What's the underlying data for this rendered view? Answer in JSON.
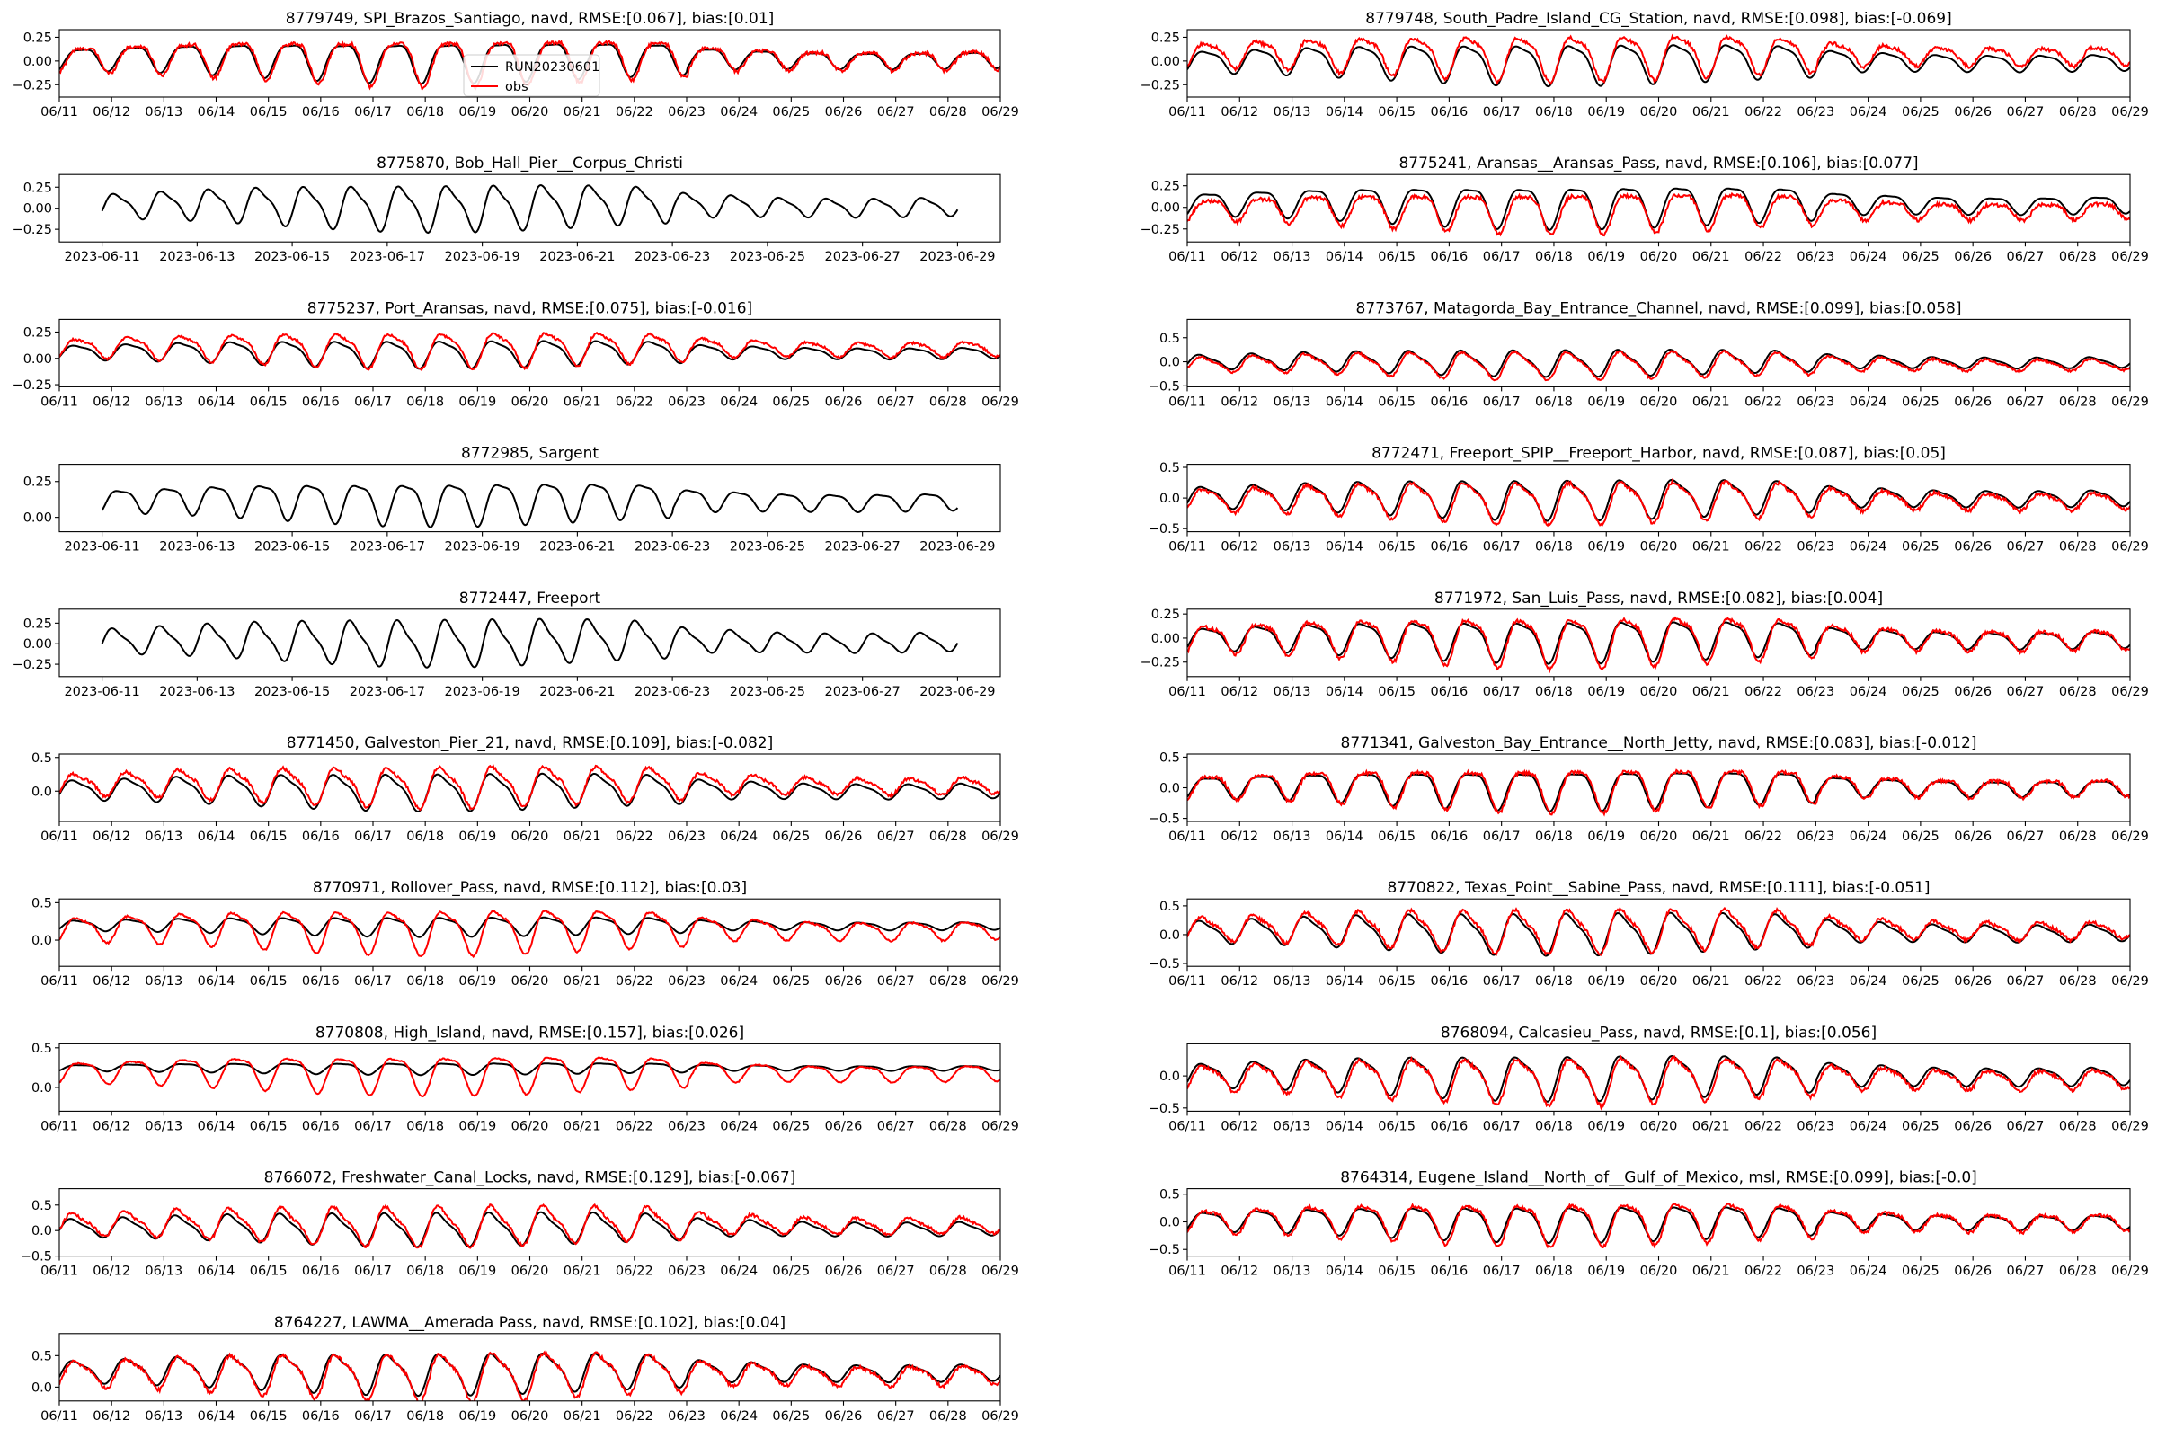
{
  "figure": {
    "legend": {
      "placement": "upper-center",
      "entries": [
        {
          "name": "RUN20230601",
          "color": "#000000"
        },
        {
          "name": "obs",
          "color": "#ff0000"
        }
      ]
    }
  },
  "colors": {
    "model": "#000000",
    "obs": "#ff0000"
  },
  "chart_data": [
    {
      "type": "line",
      "title": "8779749, SPI_Brazos_Santiago, navd, RMSE:[0.067], bias:[0.01]",
      "xaxis": "short",
      "xlim": [
        0,
        18
      ],
      "ylim": [
        -0.38,
        0.33
      ],
      "yticks": [
        -0.25,
        0,
        0.25
      ],
      "ytick_labels": [
        "−0.25",
        "0.00",
        "0.25"
      ],
      "amplitude": 0.2,
      "offset": 0.03,
      "obs": true,
      "obs_amp_scale": 1.15,
      "obs_offset": 0.0,
      "legend": true,
      "series": [
        {
          "name": "RUN20230601"
        },
        {
          "name": "obs"
        }
      ]
    },
    {
      "type": "line",
      "title": "8779748, South_Padre_Island_CG_Station, navd, RMSE:[0.098], bias:[-0.069]",
      "xaxis": "short",
      "xlim": [
        0,
        18
      ],
      "ylim": [
        -0.38,
        0.33
      ],
      "yticks": [
        -0.25,
        0,
        0.25
      ],
      "ytick_labels": [
        "−0.25",
        "0.00",
        "0.25"
      ],
      "amplitude": 0.2,
      "offset": 0.0,
      "obs": true,
      "obs_amp_scale": 1.1,
      "obs_offset": 0.07,
      "legend": false,
      "series": [
        {
          "name": "RUN20230601"
        },
        {
          "name": "obs"
        }
      ]
    },
    {
      "type": "line",
      "title": "8775870, Bob_Hall_Pier__Corpus_Christi",
      "xaxis": "long",
      "xlim": [
        -0.9,
        18.9
      ],
      "ylim": [
        -0.4,
        0.4
      ],
      "yticks": [
        -0.25,
        0,
        0.25
      ],
      "ytick_labels": [
        "−0.25",
        "0.00",
        "0.25"
      ],
      "amplitude": 0.25,
      "offset": 0.03,
      "obs": false,
      "legend": false,
      "series": [
        {
          "name": "RUN20230601"
        }
      ]
    },
    {
      "type": "line",
      "title": "8775241, Aransas__Aransas_Pass, navd, RMSE:[0.106], bias:[0.077]",
      "xaxis": "short",
      "xlim": [
        0,
        18
      ],
      "ylim": [
        -0.4,
        0.38
      ],
      "yticks": [
        -0.25,
        0,
        0.25
      ],
      "ytick_labels": [
        "−0.25",
        "0.00",
        "0.25"
      ],
      "amplitude": 0.23,
      "offset": 0.05,
      "obs": true,
      "obs_amp_scale": 0.95,
      "obs_offset": -0.07,
      "legend": false,
      "series": [
        {
          "name": "RUN20230601"
        },
        {
          "name": "obs"
        }
      ]
    },
    {
      "type": "line",
      "title": "8775237, Port_Aransas, navd, RMSE:[0.075], bias:[-0.016]",
      "xaxis": "short",
      "xlim": [
        0,
        18
      ],
      "ylim": [
        -0.27,
        0.37
      ],
      "yticks": [
        -0.25,
        0,
        0.25
      ],
      "ytick_labels": [
        "−0.25",
        "0.00",
        "0.25"
      ],
      "amplitude": 0.12,
      "offset": 0.06,
      "obs": true,
      "obs_amp_scale": 1.3,
      "obs_offset": 0.04,
      "legend": false,
      "series": [
        {
          "name": "RUN20230601"
        },
        {
          "name": "obs"
        }
      ]
    },
    {
      "type": "line",
      "title": "8773767, Matagorda_Bay_Entrance_Channel, navd, RMSE:[0.099], bias:[0.058]",
      "xaxis": "short",
      "xlim": [
        0,
        18
      ],
      "ylim": [
        -0.52,
        0.88
      ],
      "yticks": [
        -0.5,
        0,
        0.5
      ],
      "ytick_labels": [
        "−0.5",
        "0.0",
        "0.5"
      ],
      "amplitude": 0.25,
      "offset": 0.0,
      "obs": true,
      "obs_amp_scale": 1.05,
      "obs_offset": -0.05,
      "legend": false,
      "series": [
        {
          "name": "RUN20230601"
        },
        {
          "name": "obs"
        }
      ]
    },
    {
      "type": "line",
      "title": "8772985, Sargent",
      "xaxis": "long",
      "xlim": [
        -0.9,
        18.9
      ],
      "ylim": [
        -0.1,
        0.37
      ],
      "yticks": [
        0,
        0.25
      ],
      "ytick_labels": [
        "0.00",
        "0.25"
      ],
      "amplitude": 0.14,
      "offset": 0.12,
      "obs": false,
      "legend": false,
      "series": [
        {
          "name": "RUN20230601"
        }
      ]
    },
    {
      "type": "line",
      "title": "8772471, Freeport_SPIP__Freeport_Harbor, navd, RMSE:[0.087], bias:[0.05]",
      "xaxis": "short",
      "xlim": [
        0,
        18
      ],
      "ylim": [
        -0.55,
        0.55
      ],
      "yticks": [
        -0.5,
        0,
        0.5
      ],
      "ytick_labels": [
        "−0.5",
        "0.0",
        "0.5"
      ],
      "amplitude": 0.3,
      "offset": 0.02,
      "obs": true,
      "obs_amp_scale": 1.05,
      "obs_offset": -0.05,
      "legend": false,
      "series": [
        {
          "name": "RUN20230601"
        },
        {
          "name": "obs"
        }
      ]
    },
    {
      "type": "line",
      "title": "8772447, Freeport",
      "xaxis": "long",
      "xlim": [
        -0.9,
        18.9
      ],
      "ylim": [
        -0.4,
        0.42
      ],
      "yticks": [
        -0.25,
        0,
        0.25
      ],
      "ytick_labels": [
        "−0.25",
        "0.00",
        "0.25"
      ],
      "amplitude": 0.26,
      "offset": 0.03,
      "obs": false,
      "legend": false,
      "series": [
        {
          "name": "RUN20230601"
        }
      ]
    },
    {
      "type": "line",
      "title": "8771972, San_Luis_Pass, navd, RMSE:[0.082], bias:[0.004]",
      "xaxis": "short",
      "xlim": [
        0,
        18
      ],
      "ylim": [
        -0.4,
        0.3
      ],
      "yticks": [
        -0.25,
        0,
        0.25
      ],
      "ytick_labels": [
        "−0.25",
        "0.00",
        "0.25"
      ],
      "amplitude": 0.2,
      "offset": 0.0,
      "obs": true,
      "obs_amp_scale": 1.2,
      "obs_offset": 0.0,
      "legend": false,
      "series": [
        {
          "name": "RUN20230601"
        },
        {
          "name": "obs"
        }
      ]
    },
    {
      "type": "line",
      "title": "8771450, Galveston_Pier_21, navd, RMSE:[0.109], bias:[-0.082]",
      "xaxis": "short",
      "xlim": [
        0,
        18
      ],
      "ylim": [
        -0.45,
        0.55
      ],
      "yticks": [
        0,
        0.5
      ],
      "ytick_labels": [
        "0.0",
        "0.5"
      ],
      "amplitude": 0.25,
      "offset": 0.02,
      "obs": true,
      "obs_amp_scale": 1.1,
      "obs_offset": 0.08,
      "legend": false,
      "series": [
        {
          "name": "RUN20230601"
        },
        {
          "name": "obs"
        }
      ]
    },
    {
      "type": "line",
      "title": "8771341, Galveston_Bay_Entrance__North_Jetty, navd, RMSE:[0.083], bias:[-0.012]",
      "xaxis": "short",
      "xlim": [
        0,
        18
      ],
      "ylim": [
        -0.55,
        0.55
      ],
      "yticks": [
        -0.5,
        0,
        0.5
      ],
      "ytick_labels": [
        "−0.5",
        "0.0",
        "0.5"
      ],
      "amplitude": 0.3,
      "offset": 0.02,
      "obs": true,
      "obs_amp_scale": 1.1,
      "obs_offset": 0.01,
      "legend": false,
      "series": [
        {
          "name": "RUN20230601"
        },
        {
          "name": "obs"
        }
      ]
    },
    {
      "type": "line",
      "title": "8770971, Rollover_Pass, navd, RMSE:[0.112], bias:[0.03]",
      "xaxis": "short",
      "xlim": [
        0,
        18
      ],
      "ylim": [
        -0.35,
        0.55
      ],
      "yticks": [
        0,
        0.5
      ],
      "ytick_labels": [
        "0.0",
        "0.5"
      ],
      "amplitude": 0.12,
      "offset": 0.2,
      "obs": true,
      "obs_amp_scale": 2.3,
      "obs_offset": -0.05,
      "legend": false,
      "series": [
        {
          "name": "RUN20230601"
        },
        {
          "name": "obs"
        }
      ]
    },
    {
      "type": "line",
      "title": "8770822, Texas_Point__Sabine_Pass, navd, RMSE:[0.111], bias:[-0.051]",
      "xaxis": "short",
      "xlim": [
        0,
        18
      ],
      "ylim": [
        -0.55,
        0.62
      ],
      "yticks": [
        -0.5,
        0,
        0.5
      ],
      "ytick_labels": [
        "−0.5",
        "0.0",
        "0.5"
      ],
      "amplitude": 0.33,
      "offset": 0.05,
      "obs": true,
      "obs_amp_scale": 1.05,
      "obs_offset": 0.05,
      "legend": false,
      "series": [
        {
          "name": "RUN20230601"
        },
        {
          "name": "obs"
        }
      ]
    },
    {
      "type": "line",
      "title": "8770808, High_Island, navd, RMSE:[0.157], bias:[0.026]",
      "xaxis": "short",
      "xlim": [
        0,
        18
      ],
      "ylim": [
        -0.3,
        0.55
      ],
      "yticks": [
        0,
        0.5
      ],
      "ytick_labels": [
        "0.0",
        "0.5"
      ],
      "amplitude": 0.07,
      "offset": 0.25,
      "obs": true,
      "obs_amp_scale": 3.3,
      "obs_offset": -0.05,
      "legend": false,
      "series": [
        {
          "name": "RUN20230601"
        },
        {
          "name": "obs"
        }
      ]
    },
    {
      "type": "line",
      "title": "8768094, Calcasieu_Pass, navd, RMSE:[0.1], bias:[0.056]",
      "xaxis": "short",
      "xlim": [
        0,
        18
      ],
      "ylim": [
        -0.55,
        0.5
      ],
      "yticks": [
        -0.5,
        0
      ],
      "ytick_labels": [
        "−0.5",
        "0.0"
      ],
      "amplitude": 0.32,
      "offset": 0.02,
      "obs": true,
      "obs_amp_scale": 1.05,
      "obs_offset": -0.05,
      "legend": false,
      "series": [
        {
          "name": "RUN20230601"
        },
        {
          "name": "obs"
        }
      ]
    },
    {
      "type": "line",
      "title": "8766072, Freshwater_Canal_Locks, navd, RMSE:[0.129], bias:[-0.067]",
      "xaxis": "short",
      "xlim": [
        0,
        18
      ],
      "ylim": [
        -0.5,
        0.82
      ],
      "yticks": [
        -0.5,
        0,
        0.5
      ],
      "ytick_labels": [
        "−0.5",
        "0.0",
        "0.5"
      ],
      "amplitude": 0.3,
      "offset": 0.05,
      "obs": true,
      "obs_amp_scale": 1.2,
      "obs_offset": 0.07,
      "legend": false,
      "series": [
        {
          "name": "RUN20230601"
        },
        {
          "name": "obs"
        }
      ]
    },
    {
      "type": "line",
      "title": "8764314, Eugene_Island__North_of__Gulf_of_Mexico, msl, RMSE:[0.099], bias:[-0.0]",
      "xaxis": "short",
      "xlim": [
        0,
        18
      ],
      "ylim": [
        -0.62,
        0.6
      ],
      "yticks": [
        -0.5,
        0,
        0.5
      ],
      "ytick_labels": [
        "−0.5",
        "0.0",
        "0.5"
      ],
      "amplitude": 0.3,
      "offset": 0.02,
      "obs": true,
      "obs_amp_scale": 1.2,
      "obs_offset": 0.0,
      "legend": false,
      "series": [
        {
          "name": "RUN20230601"
        },
        {
          "name": "obs"
        }
      ]
    },
    {
      "type": "line",
      "title": "8764227, LAWMA__Amerada Pass, navd, RMSE:[0.102], bias:[0.04]",
      "xaxis": "short",
      "xlim": [
        0,
        18
      ],
      "ylim": [
        -0.22,
        0.85
      ],
      "yticks": [
        0,
        0.5
      ],
      "ytick_labels": [
        "0.0",
        "0.5"
      ],
      "amplitude": 0.3,
      "offset": 0.25,
      "obs": true,
      "obs_amp_scale": 1.15,
      "obs_offset": -0.04,
      "legend": false,
      "series": [
        {
          "name": "RUN20230601"
        },
        {
          "name": "obs"
        }
      ]
    }
  ],
  "xaxes": {
    "short": {
      "positions": [
        0,
        1,
        2,
        3,
        4,
        5,
        6,
        7,
        8,
        9,
        10,
        11,
        12,
        13,
        14,
        15,
        16,
        17,
        18
      ],
      "labels": [
        "06/11",
        "06/12",
        "06/13",
        "06/14",
        "06/15",
        "06/16",
        "06/17",
        "06/18",
        "06/19",
        "06/20",
        "06/21",
        "06/22",
        "06/23",
        "06/24",
        "06/25",
        "06/26",
        "06/27",
        "06/28",
        "06/29"
      ]
    },
    "long": {
      "positions": [
        0,
        2,
        4,
        6,
        8,
        10,
        12,
        14,
        16,
        18
      ],
      "labels": [
        "2023-06-11",
        "2023-06-13",
        "2023-06-15",
        "2023-06-17",
        "2023-06-19",
        "2023-06-21",
        "2023-06-23",
        "2023-06-25",
        "2023-06-27",
        "2023-06-29"
      ]
    }
  }
}
